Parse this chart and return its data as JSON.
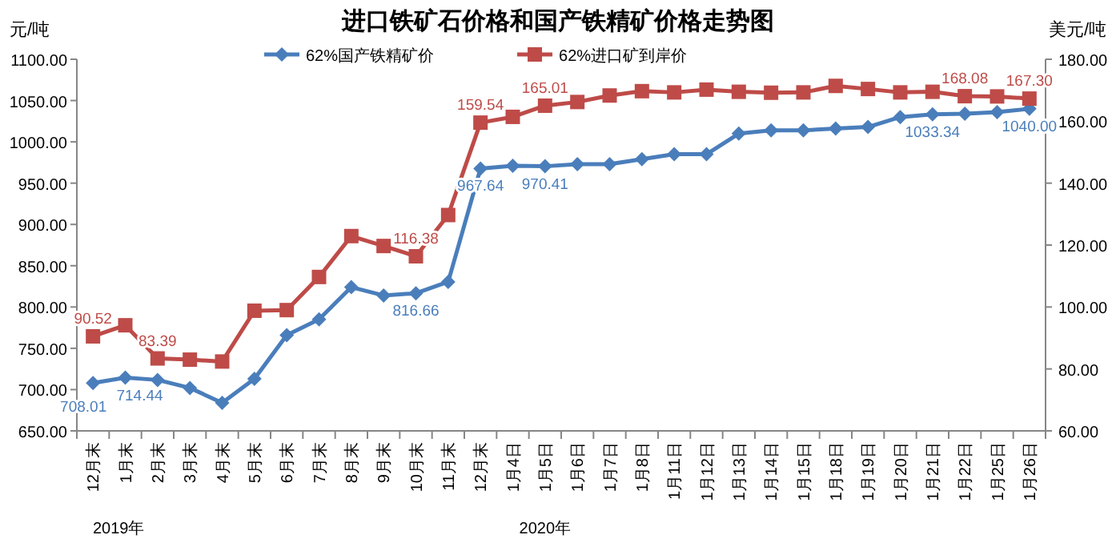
{
  "chart_data": {
    "type": "line",
    "title": "进口铁矿石价格和国产铁精矿价格走势图",
    "ylabel": "元/吨",
    "y2label": "美元/吨",
    "categories": [
      "12月末",
      "1月末",
      "2月末",
      "3月末",
      "4月末",
      "5月末",
      "6月末",
      "7月末",
      "8月末",
      "9月末",
      "10月末",
      "11月末",
      "12月末",
      "1月4日",
      "1月5日",
      "1月6日",
      "1月7日",
      "1月8日",
      "1月11日",
      "1月12日",
      "1月13日",
      "1月14日",
      "1月15日",
      "1月18日",
      "1月19日",
      "1月20日",
      "1月21日",
      "1月22日",
      "1月25日",
      "1月26日"
    ],
    "series": [
      {
        "name": "62%国产铁精矿价",
        "color": "#4a7ebb",
        "marker": "diamond",
        "values": [
          708.01,
          714.44,
          711.7,
          702,
          684,
          713,
          766,
          785,
          824,
          814,
          816.66,
          830.5,
          967.64,
          971,
          970.41,
          973,
          973,
          979,
          985,
          985,
          1010,
          1014,
          1014,
          1016,
          1018,
          1030,
          1033.34,
          1034,
          1036,
          1040.0
        ],
        "value_labels": [
          "708.01",
          "714.44",
          null,
          null,
          null,
          null,
          null,
          null,
          null,
          null,
          "816.66",
          null,
          "967.64",
          null,
          "970.41",
          null,
          null,
          null,
          null,
          null,
          null,
          null,
          null,
          null,
          null,
          null,
          "1033.34",
          null,
          null,
          "1040.00"
        ]
      },
      {
        "name": "62%进口矿到岸价",
        "color": "#be4b48",
        "marker": "square",
        "axis": "y2",
        "values": [
          90.52,
          94.1,
          83.39,
          83.0,
          82.4,
          98.8,
          99.0,
          109.7,
          122.9,
          119.7,
          116.38,
          129.7,
          159.54,
          161.4,
          165.01,
          166.2,
          168.3,
          169.7,
          169.3,
          170.2,
          169.5,
          169.2,
          169.3,
          171.4,
          170.4,
          169.3,
          169.5,
          168.08,
          168.0,
          167.3
        ],
        "value_labels": [
          "90.52",
          null,
          "83.39",
          null,
          null,
          null,
          null,
          null,
          null,
          null,
          "116.38",
          null,
          "159.54",
          null,
          "165.01",
          null,
          null,
          null,
          null,
          null,
          null,
          null,
          null,
          null,
          null,
          null,
          null,
          "168.08",
          null,
          "167.30"
        ]
      }
    ],
    "ylim": [
      650,
      1100
    ],
    "yticks": [
      {
        "value": 650,
        "label": "650.00"
      },
      {
        "value": 700,
        "label": "700.00"
      },
      {
        "value": 750,
        "label": "750.00"
      },
      {
        "value": 800,
        "label": "800.00"
      },
      {
        "value": 850,
        "label": "850.00"
      },
      {
        "value": 900,
        "label": "900.00"
      },
      {
        "value": 950,
        "label": "950.00"
      },
      {
        "value": 1000,
        "label": "1000.00"
      },
      {
        "value": 1050,
        "label": "1050.00"
      },
      {
        "value": 1100,
        "label": "1100.00"
      }
    ],
    "y2lim": [
      60,
      180
    ],
    "y2ticks": [
      {
        "value": 60,
        "label": "60.00"
      },
      {
        "value": 80,
        "label": "80.00"
      },
      {
        "value": 100,
        "label": "100.00"
      },
      {
        "value": 120,
        "label": "120.00"
      },
      {
        "value": 140,
        "label": "140.00"
      },
      {
        "value": 160,
        "label": "160.00"
      },
      {
        "value": 180,
        "label": "180.00"
      }
    ],
    "annotations": [
      "2019年",
      "2020年"
    ],
    "legend": "top",
    "grid": false,
    "line_style": "solid"
  }
}
